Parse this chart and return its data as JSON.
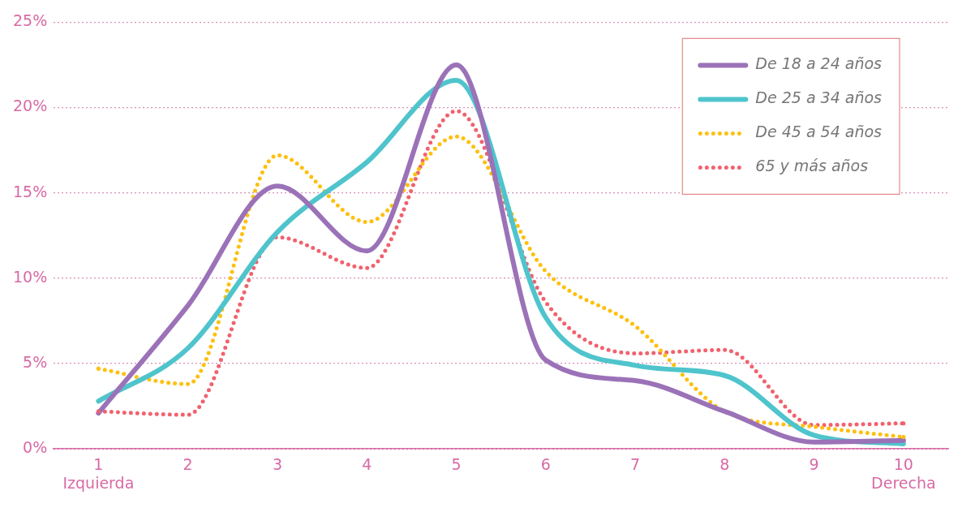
{
  "chart_data": {
    "type": "line",
    "categories": [
      "1",
      "2",
      "3",
      "4",
      "5",
      "6",
      "7",
      "8",
      "9",
      "10"
    ],
    "series": [
      {
        "name": "De 18 a 24 años",
        "color": "#9b72b8",
        "line_style": "solid",
        "values": [
          2.1,
          8.4,
          15.4,
          11.6,
          22.5,
          5.2,
          4.0,
          2.2,
          0.4,
          0.5
        ]
      },
      {
        "name": "De 25 a 34 años",
        "color": "#4fc4cc",
        "line_style": "solid",
        "values": [
          2.8,
          5.9,
          12.7,
          16.8,
          21.6,
          7.7,
          4.9,
          4.3,
          0.8,
          0.3
        ]
      },
      {
        "name": "De 45 a 54 años",
        "color": "#fdc010",
        "line_style": "dotted",
        "values": [
          4.7,
          3.8,
          17.2,
          13.3,
          18.3,
          10.4,
          7.2,
          2.2,
          1.3,
          0.7
        ]
      },
      {
        "name": "65 y más años",
        "color": "#f0626e",
        "line_style": "dotted",
        "values": [
          2.2,
          2.0,
          12.4,
          10.6,
          19.8,
          8.6,
          5.6,
          5.8,
          1.4,
          1.5
        ]
      }
    ],
    "ylim": [
      0,
      25
    ],
    "yticks": [
      {
        "value": 0,
        "label": "0%"
      },
      {
        "value": 5,
        "label": "5%"
      },
      {
        "value": 10,
        "label": "10%"
      },
      {
        "value": 15,
        "label": "15%"
      },
      {
        "value": 20,
        "label": "20%"
      },
      {
        "value": 25,
        "label": "25%"
      }
    ],
    "annotations": [
      "Izquierda",
      "Derecha"
    ],
    "grid": "y",
    "legend": "top right",
    "marker": "none"
  }
}
